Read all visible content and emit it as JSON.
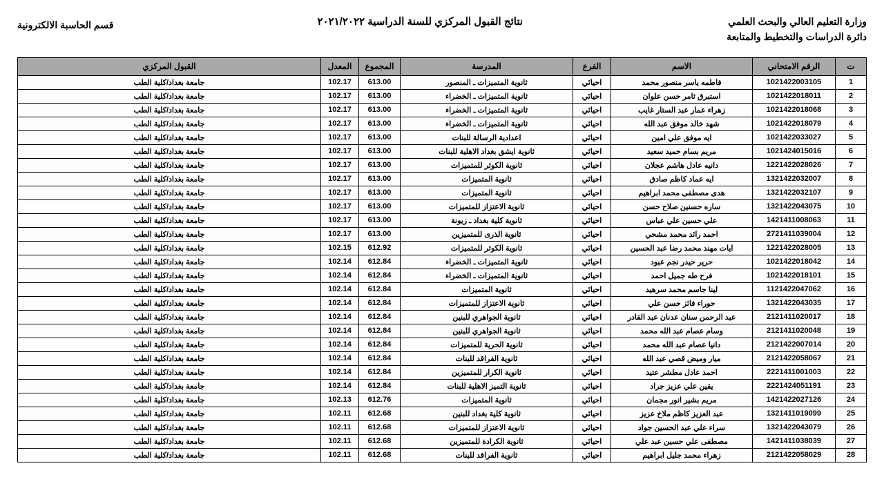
{
  "header": {
    "ministry": "وزارة التعليم العالي والبحث العلمي",
    "dept": "دائرة الدراسات والتخطيط والمتابعة",
    "title": "نتائج القبول المركزي للسنة الدراسية ٢٠٢١/٢٠٢٢",
    "section": "قسم الحاسبة الالكترونية"
  },
  "columns": {
    "seq": "ت",
    "exam": "الرقم الامتحاني",
    "name": "الاسم",
    "branch": "الفرع",
    "school": "المدرسة",
    "total": "المجموع",
    "avg": "المعدل",
    "accept": "القبول المركزي"
  },
  "style": {
    "header_bg": "#a9a9a9",
    "border_color": "#000000",
    "font_size_header": 14,
    "font_size_cell": 11
  },
  "rows": [
    {
      "seq": "1",
      "exam": "1021422003105",
      "name": "فاطمه ياسر منصور محمد",
      "branch": "احيائي",
      "school": "ثانوية المتميزات ـ المنصور",
      "total": "613.00",
      "avg": "102.17",
      "accept": "جامعة بغداد/كلية الطب"
    },
    {
      "seq": "2",
      "exam": "1021422018011",
      "name": "استبرق ثامر حسن علوان",
      "branch": "احيائي",
      "school": "ثانوية المتميزات ـ الخضراء",
      "total": "613.00",
      "avg": "102.17",
      "accept": "جامعة بغداد/كلية الطب"
    },
    {
      "seq": "3",
      "exam": "1021422018068",
      "name": "زهراء عمار عبد الستار غايب",
      "branch": "احيائي",
      "school": "ثانوية المتميزات ـ الخضراء",
      "total": "613.00",
      "avg": "102.17",
      "accept": "جامعة بغداد/كلية الطب"
    },
    {
      "seq": "4",
      "exam": "1021422018079",
      "name": "شهد خالد موفق عبد الله",
      "branch": "احيائي",
      "school": "ثانوية المتميزات ـ الخضراء",
      "total": "613.00",
      "avg": "102.17",
      "accept": "جامعة بغداد/كلية الطب"
    },
    {
      "seq": "5",
      "exam": "1021422033027",
      "name": "ايه موفق علي امين",
      "branch": "احيائي",
      "school": "اعدادية الرسالة للبنات",
      "total": "613.00",
      "avg": "102.17",
      "accept": "جامعة بغداد/كلية الطب"
    },
    {
      "seq": "6",
      "exam": "1021424015016",
      "name": "مريم بسام حميد سعيد",
      "branch": "احيائي",
      "school": "ثانوية ايشق بغداد الاهلية للبنات",
      "total": "613.00",
      "avg": "102.17",
      "accept": "جامعة بغداد/كلية الطب"
    },
    {
      "seq": "7",
      "exam": "1221422028026",
      "name": "دانيه عادل هاشم عجلان",
      "branch": "احيائي",
      "school": "ثانوية الكوثر للمتميزات",
      "total": "613.00",
      "avg": "102.17",
      "accept": "جامعة بغداد/كلية الطب"
    },
    {
      "seq": "8",
      "exam": "1321422032007",
      "name": "ايه عماد كاظم صادق",
      "branch": "احيائي",
      "school": "ثانوية المتميزات",
      "total": "613.00",
      "avg": "102.17",
      "accept": "جامعة بغداد/كلية الطب"
    },
    {
      "seq": "9",
      "exam": "1321422032107",
      "name": "هدى مصطفى محمد ابراهيم",
      "branch": "احيائي",
      "school": "ثانوية المتميزات",
      "total": "613.00",
      "avg": "102.17",
      "accept": "جامعة بغداد/كلية الطب"
    },
    {
      "seq": "10",
      "exam": "1321422043075",
      "name": "ساره حسنين صلاح حسن",
      "branch": "احيائي",
      "school": "ثانوية الاعتزاز للمتميزات",
      "total": "613.00",
      "avg": "102.17",
      "accept": "جامعة بغداد/كلية الطب"
    },
    {
      "seq": "11",
      "exam": "1421411008063",
      "name": "علي حسين علي عباس",
      "branch": "احيائي",
      "school": "ثانوية كلية بغداد ـ زيونة",
      "total": "613.00",
      "avg": "102.17",
      "accept": "جامعة بغداد/كلية الطب"
    },
    {
      "seq": "12",
      "exam": "2721411039004",
      "name": "احمد رائد محمد مشحي",
      "branch": "احيائي",
      "school": "ثانوية الذرى للمتميزين",
      "total": "613.00",
      "avg": "102.17",
      "accept": "جامعة بغداد/كلية الطب"
    },
    {
      "seq": "13",
      "exam": "1221422028005",
      "name": "ايات مهند محمد رضا عبد الحسين",
      "branch": "احيائي",
      "school": "ثانوية الكوثر للمتميزات",
      "total": "612.92",
      "avg": "102.15",
      "accept": "جامعة بغداد/كلية الطب"
    },
    {
      "seq": "14",
      "exam": "1021422018042",
      "name": "حرير حيدر نجم عبود",
      "branch": "احيائي",
      "school": "ثانوية المتميزات ـ الخضراء",
      "total": "612.84",
      "avg": "102.14",
      "accept": "جامعة بغداد/كلية الطب"
    },
    {
      "seq": "15",
      "exam": "1021422018101",
      "name": "فرح طه جميل احمد",
      "branch": "احيائي",
      "school": "ثانوية المتميزات ـ الخضراء",
      "total": "612.84",
      "avg": "102.14",
      "accept": "جامعة بغداد/كلية الطب"
    },
    {
      "seq": "16",
      "exam": "1121422047062",
      "name": "لينا جاسم محمد سرهيد",
      "branch": "احيائي",
      "school": "ثانوية المتميزات",
      "total": "612.84",
      "avg": "102.14",
      "accept": "جامعة بغداد/كلية الطب"
    },
    {
      "seq": "17",
      "exam": "1321422043035",
      "name": "حوراء فائز حسن علي",
      "branch": "احيائي",
      "school": "ثانوية الاعتزاز للمتميزات",
      "total": "612.84",
      "avg": "102.14",
      "accept": "جامعة بغداد/كلية الطب"
    },
    {
      "seq": "18",
      "exam": "2121411020017",
      "name": "عبد الرحمن سنان عدنان عبد القادر",
      "branch": "احيائي",
      "school": "ثانوية الجواهري للبنين",
      "total": "612.84",
      "avg": "102.14",
      "accept": "جامعة بغداد/كلية الطب"
    },
    {
      "seq": "19",
      "exam": "2121411020048",
      "name": "وسام عصام عبد الله محمد",
      "branch": "احيائي",
      "school": "ثانوية الجواهري للبنين",
      "total": "612.84",
      "avg": "102.14",
      "accept": "جامعة بغداد/كلية الطب"
    },
    {
      "seq": "20",
      "exam": "2121422007014",
      "name": "دانيا عصام عبد الله محمد",
      "branch": "احيائي",
      "school": "ثانوية الحرية للمتميزات",
      "total": "612.84",
      "avg": "102.14",
      "accept": "جامعة بغداد/كلية الطب"
    },
    {
      "seq": "21",
      "exam": "2121422058067",
      "name": "ميار وميض قصي عبد الله",
      "branch": "احيائي",
      "school": "ثانوية الفراقد للبنات",
      "total": "612.84",
      "avg": "102.14",
      "accept": "جامعة بغداد/كلية الطب"
    },
    {
      "seq": "22",
      "exam": "2221411001003",
      "name": "احمد عادل مطشر عتيد",
      "branch": "احيائي",
      "school": "ثانوية الكرار للمتميزين",
      "total": "612.84",
      "avg": "102.14",
      "accept": "جامعة بغداد/كلية الطب"
    },
    {
      "seq": "23",
      "exam": "2221424051191",
      "name": "يقين علي عزيز جراد",
      "branch": "احيائي",
      "school": "ثانوية التميز الاهلية للبنات",
      "total": "612.84",
      "avg": "102.14",
      "accept": "جامعة بغداد/كلية الطب"
    },
    {
      "seq": "24",
      "exam": "1421422027126",
      "name": "مريم بشير انور مجمان",
      "branch": "احيائي",
      "school": "ثانوية المتميزات",
      "total": "612.76",
      "avg": "102.13",
      "accept": "جامعة بغداد/كلية الطب"
    },
    {
      "seq": "25",
      "exam": "1321411019099",
      "name": "عبد العزيز كاظم ملاخ عزيز",
      "branch": "احيائي",
      "school": "ثانوية كلية بغداد للبنين",
      "total": "612.68",
      "avg": "102.11",
      "accept": "جامعة بغداد/كلية الطب"
    },
    {
      "seq": "26",
      "exam": "1321422043079",
      "name": "سراء علي عبد الحسين جواد",
      "branch": "احيائي",
      "school": "ثانوية الاعتزاز للمتميزات",
      "total": "612.68",
      "avg": "102.11",
      "accept": "جامعة بغداد/كلية الطب"
    },
    {
      "seq": "27",
      "exam": "1421411038039",
      "name": "مصطفى علي حسين عبد علي",
      "branch": "احيائي",
      "school": "ثانوية الكرادة للمتميزين",
      "total": "612.68",
      "avg": "102.11",
      "accept": "جامعة بغداد/كلية الطب"
    },
    {
      "seq": "28",
      "exam": "2121422058029",
      "name": "زهراء محمد جليل ابراهيم",
      "branch": "احيائي",
      "school": "ثانوية الفراقد للبنات",
      "total": "612.68",
      "avg": "102.11",
      "accept": "جامعة بغداد/كلية الطب"
    }
  ]
}
